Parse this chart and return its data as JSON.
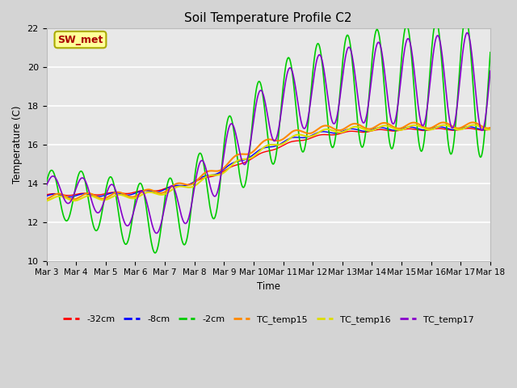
{
  "title": "Soil Temperature Profile C2",
  "xlabel": "Time",
  "ylabel": "Temperature (C)",
  "ylim": [
    10,
    22
  ],
  "xlim": [
    0,
    360
  ],
  "fig_bg": "#d4d4d4",
  "plot_bg": "#e8e8e8",
  "grid_color": "#ffffff",
  "annotation_text": "SW_met",
  "annotation_bg": "#ffff99",
  "annotation_edge": "#aaaa00",
  "annotation_text_color": "#aa0000",
  "series_colors": {
    "-32cm": "#ff0000",
    "-8cm": "#0000ff",
    "-2cm": "#00cc00",
    "TC_temp15": "#ff8800",
    "TC_temp16": "#dddd00",
    "TC_temp17": "#8800cc"
  },
  "legend_labels": [
    "-32cm",
    "-8cm",
    "-2cm",
    "TC_temp15",
    "TC_temp16",
    "TC_temp17"
  ],
  "xtick_labels": [
    "Mar 3",
    "Mar 4",
    "Mar 5",
    "Mar 6",
    "Mar 7",
    "Mar 8",
    "Mar 9",
    "Mar 10",
    "Mar 11",
    "Mar 12",
    "Mar 13",
    "Mar 14",
    "Mar 15",
    "Mar 16",
    "Mar 17",
    "Mar 18"
  ],
  "xtick_positions": [
    0,
    24,
    48,
    72,
    96,
    120,
    144,
    168,
    192,
    216,
    240,
    264,
    288,
    312,
    336,
    360
  ],
  "ytick_labels": [
    "10",
    "12",
    "14",
    "16",
    "18",
    "20",
    "22"
  ],
  "ytick_positions": [
    10,
    12,
    14,
    16,
    18,
    20,
    22
  ]
}
